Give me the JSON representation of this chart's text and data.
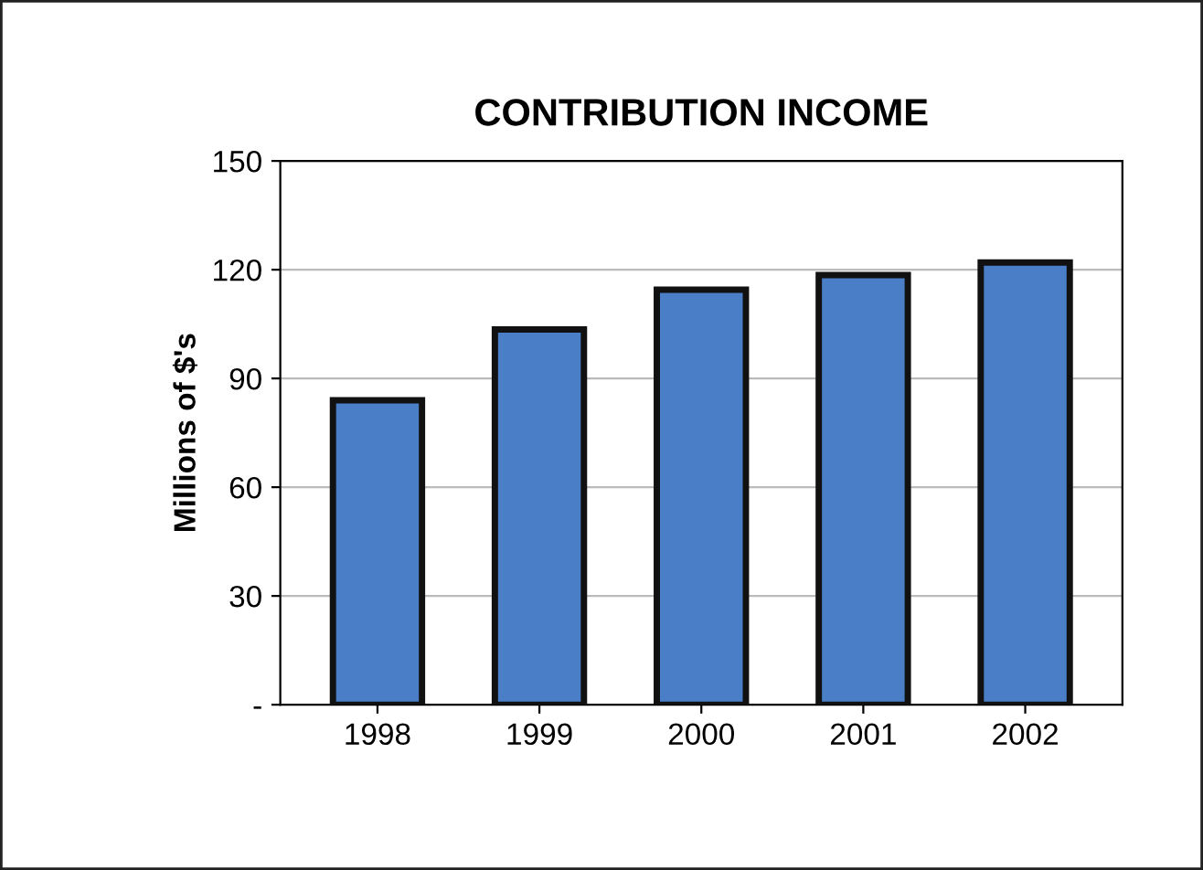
{
  "chart_data": {
    "type": "bar",
    "title": "CONTRIBUTION INCOME",
    "ylabel": "Millions of $'s",
    "categories": [
      "1998",
      "1999",
      "2000",
      "2001",
      "2002"
    ],
    "values": [
      84,
      103.5,
      114.5,
      118.5,
      122
    ],
    "color": "#4a7fc8",
    "ylim": [
      0,
      150
    ],
    "yticks": [
      {
        "value": 0,
        "label": "-"
      },
      30,
      60,
      90,
      120,
      150
    ],
    "grid": "y"
  }
}
